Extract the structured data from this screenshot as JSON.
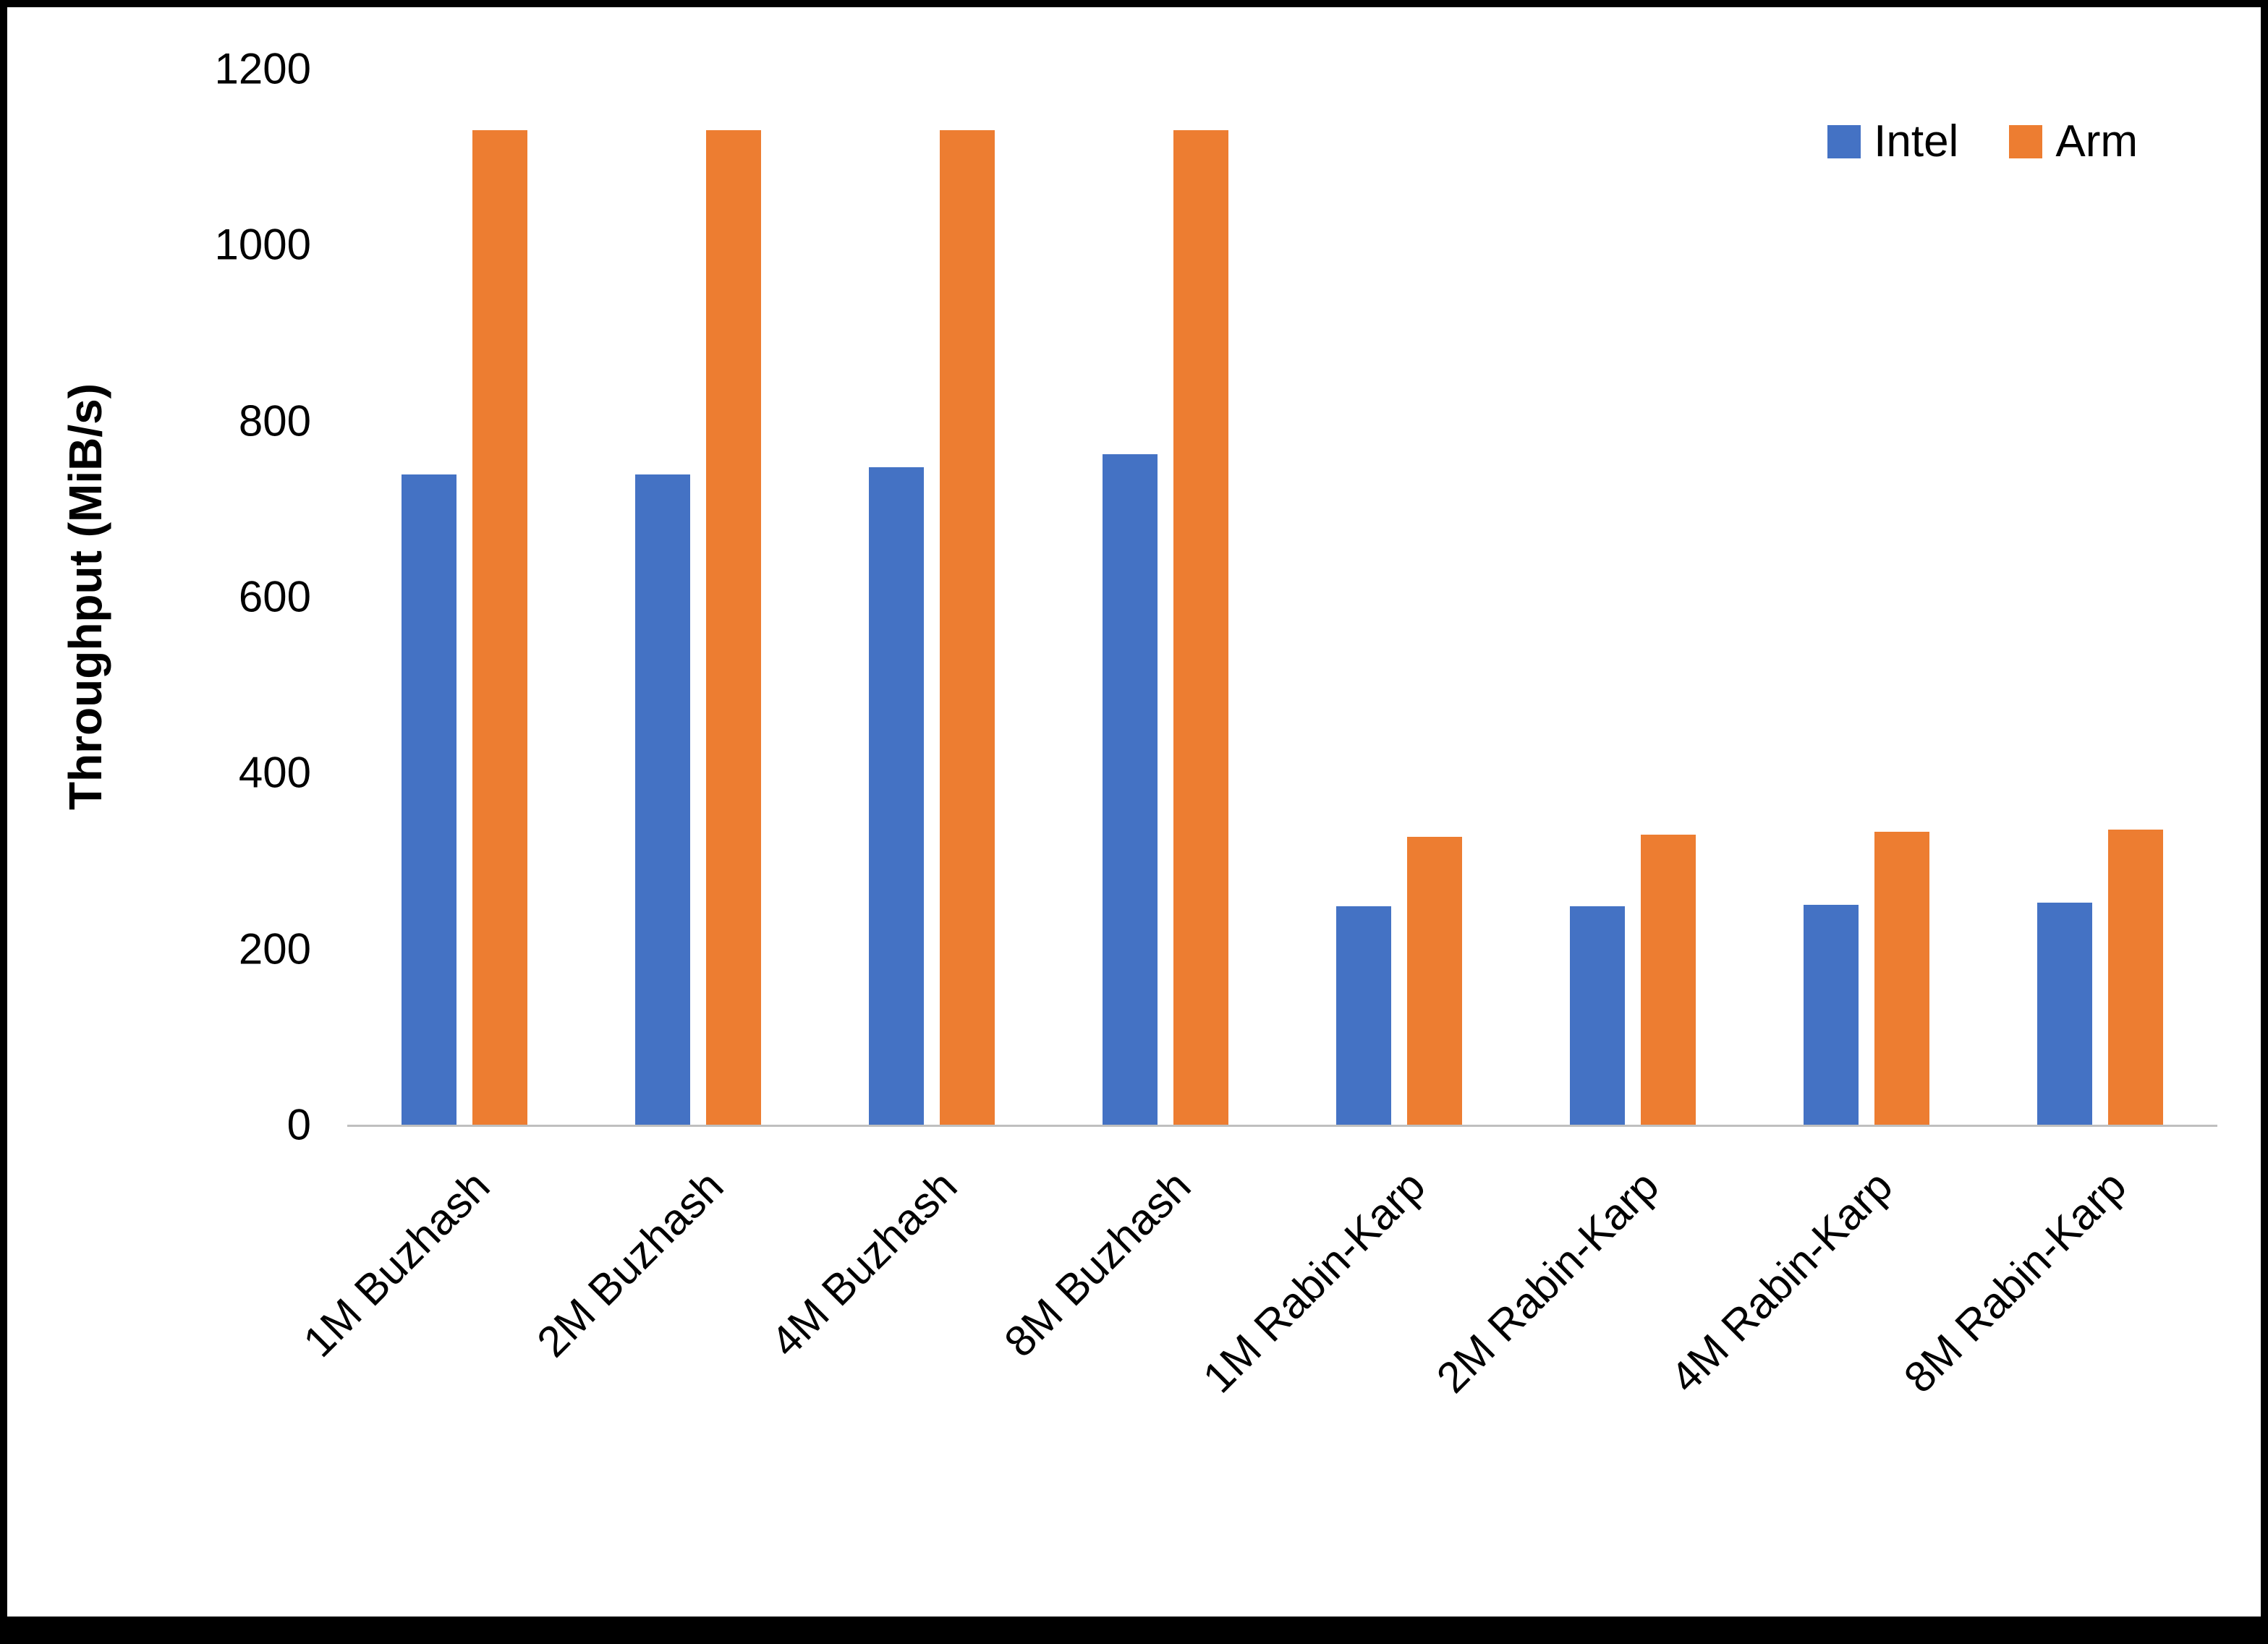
{
  "chart_data": {
    "type": "bar",
    "title": "",
    "xlabel": "",
    "ylabel": "Throughput (MiB/s)",
    "ylim": [
      0,
      1200
    ],
    "ytick_step": 200,
    "grid": false,
    "legend_position": "top-right",
    "categories": [
      "1M Buzhash",
      "2M Buzhash",
      "4M Buzhash",
      "8M Buzhash",
      "1M Rabin-Karp",
      "2M Rabin-Karp",
      "4M Rabin-Karp",
      "8M Rabin-Karp"
    ],
    "series": [
      {
        "name": "Intel",
        "color": "#4472C4",
        "values": [
          739,
          739,
          747,
          762,
          248,
          248,
          250,
          252
        ]
      },
      {
        "name": "Arm",
        "color": "#ED7D31",
        "values": [
          1130,
          1130,
          1130,
          1130,
          327,
          330,
          333,
          335
        ]
      }
    ]
  },
  "colors": {
    "background": "#FFFFFF",
    "frame": "#000000",
    "axis_line": "#BFBFBF",
    "text": "#000000"
  }
}
